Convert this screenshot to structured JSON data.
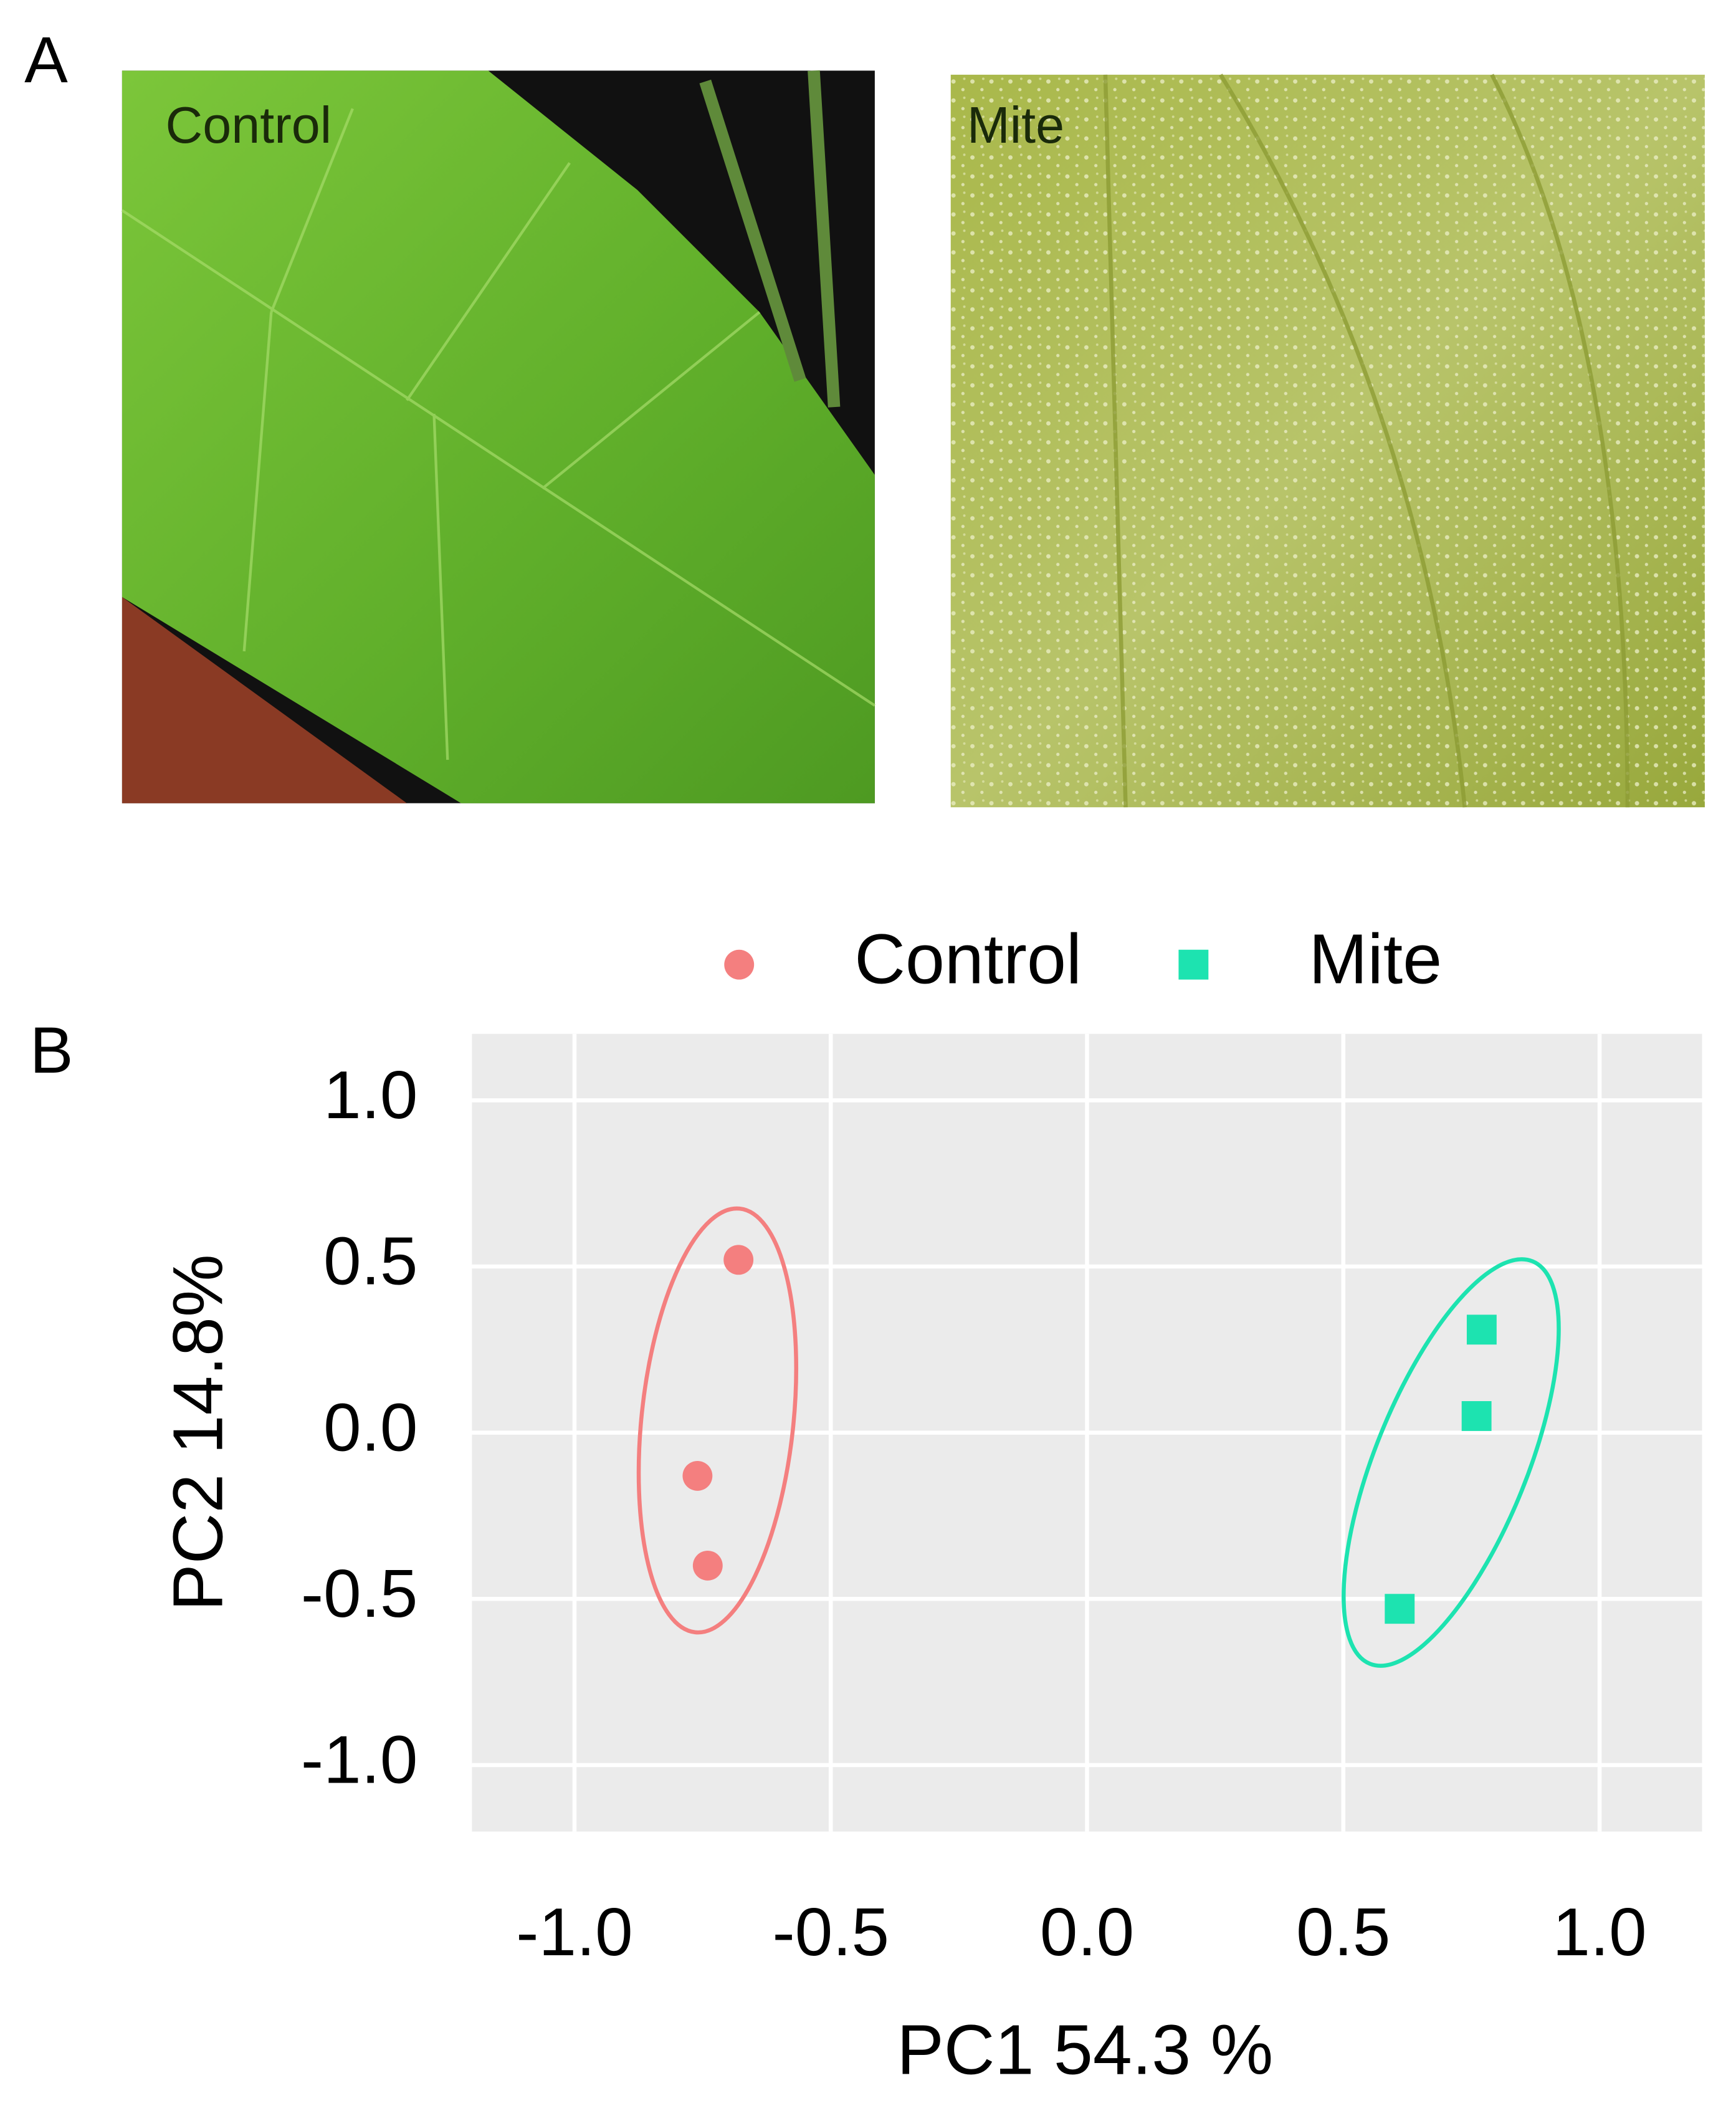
{
  "panels": {
    "a": "A",
    "b": "B"
  },
  "photos": [
    {
      "label": "Control"
    },
    {
      "label": "Mite"
    }
  ],
  "chart_data": {
    "type": "scatter",
    "xlabel": "PC1 54.3 %",
    "ylabel": "PC2 14.8%",
    "series": [
      {
        "name": "Control",
        "color": "#f47f7f",
        "marker": "circle",
        "x": [
          -0.68,
          -0.76,
          -0.74
        ],
        "values": [
          0.52,
          -0.13,
          -0.4
        ]
      },
      {
        "name": "Mite",
        "color": "#1de3b0",
        "marker": "square",
        "x": [
          0.77,
          0.76,
          0.61
        ],
        "values": [
          0.31,
          0.05,
          -0.53
        ]
      }
    ],
    "xlim": [
      -1.2,
      1.2
    ],
    "ylim": [
      -1.2,
      1.2
    ],
    "xticks": [
      {
        "value": -1,
        "label": "-1.0"
      },
      -0.5,
      {
        "value": 0,
        "label": "0.0"
      },
      0.5,
      {
        "value": 1,
        "label": "1.0"
      }
    ],
    "yticks": [
      {
        "value": -1,
        "label": "-1.0"
      },
      -0.5,
      {
        "value": 0,
        "label": "0.0"
      },
      0.5,
      {
        "value": 1,
        "label": "1.0"
      }
    ],
    "grid": true,
    "legend": "top"
  }
}
